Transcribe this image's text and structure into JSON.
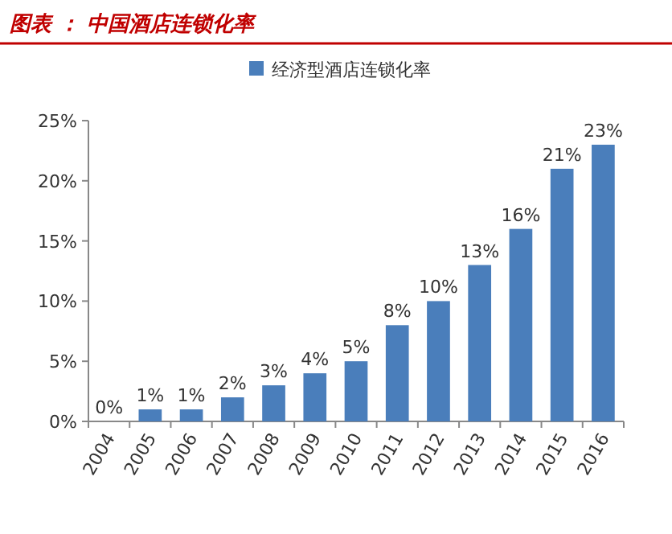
{
  "chart_data": {
    "type": "bar",
    "title": "图表 ： 中国酒店连锁化率",
    "categories": [
      "2004",
      "2005",
      "2006",
      "2007",
      "2008",
      "2009",
      "2010",
      "2011",
      "2012",
      "2013",
      "2014",
      "2015",
      "2016"
    ],
    "series": [
      {
        "name": "经济型酒店连锁化率",
        "color": "#4a7ebb",
        "values": [
          0,
          1,
          1,
          2,
          3,
          4,
          5,
          8,
          10,
          13,
          16,
          21,
          23
        ],
        "value_labels": [
          "0%",
          "1%",
          "1%",
          "2%",
          "3%",
          "4%",
          "5%",
          "8%",
          "10%",
          "13%",
          "16%",
          "21%",
          "23%"
        ]
      }
    ],
    "ylim": [
      0,
      25
    ],
    "yticks": [
      {
        "value": 0,
        "label": "0%"
      },
      {
        "value": 5,
        "label": "5%"
      },
      {
        "value": 10,
        "label": "10%"
      },
      {
        "value": 15,
        "label": "15%"
      },
      {
        "value": 20,
        "label": "20%"
      },
      {
        "value": 25,
        "label": "25%"
      }
    ],
    "grid": false,
    "legend": "top"
  }
}
